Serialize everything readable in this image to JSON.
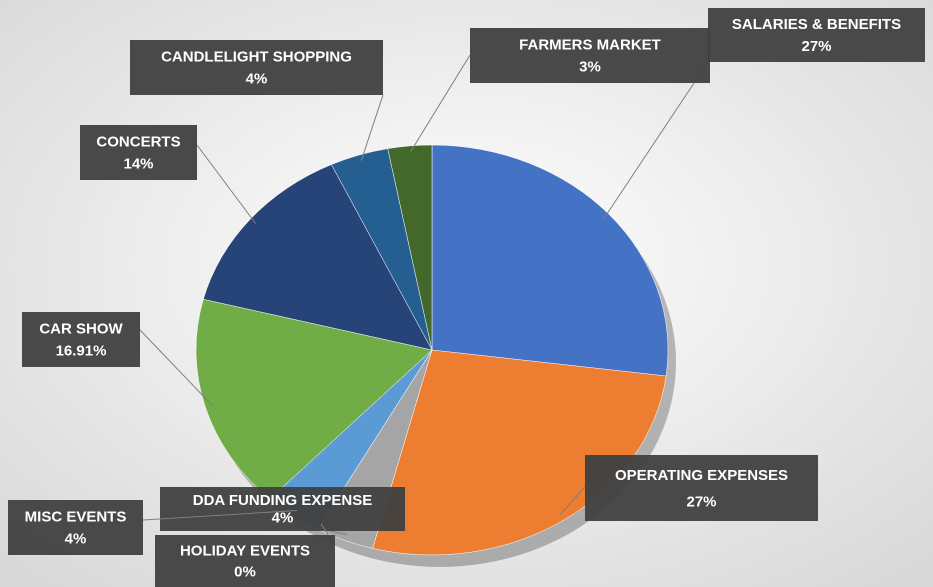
{
  "chart_data": {
    "type": "pie",
    "categories": [
      "SALARIES & BENEFITS",
      "OPERATING EXPENSES",
      "DDA FUNDING EXPENSE",
      "HOLIDAY EVENTS",
      "MISC EVENTS",
      "CAR SHOW",
      "CONCERTS",
      "CANDLELIGHT SHOPPING",
      "FARMERS MARKET"
    ],
    "values": [
      27,
      27,
      4,
      0,
      4,
      16.91,
      14,
      4,
      3
    ],
    "value_labels": [
      "27%",
      "27%",
      "4%",
      "0%",
      "4%",
      "16.91%",
      "14%",
      "4%",
      "3%"
    ],
    "colors": [
      "#4472c4",
      "#ed7d31",
      "#a5a5a5",
      "#ffc000",
      "#5b9bd5",
      "#70ad47",
      "#264478",
      "#255e91",
      "#43682b"
    ]
  }
}
